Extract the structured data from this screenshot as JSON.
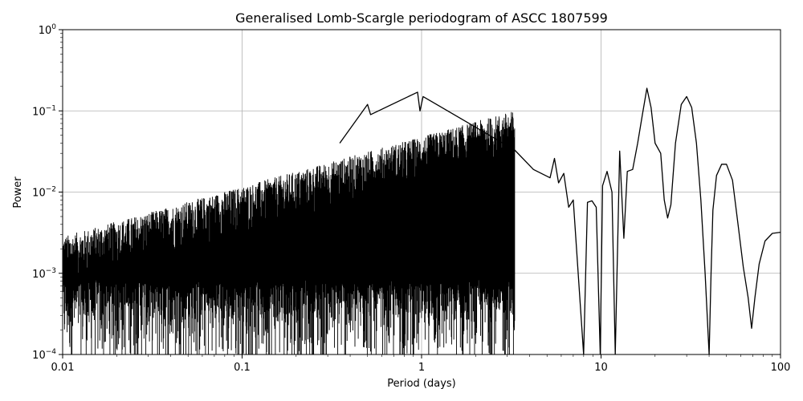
{
  "chart_data": {
    "type": "line",
    "title": "Generalised Lomb-Scargle periodogram of ASCC 1807599",
    "xlabel": "Period (days)",
    "ylabel": "Power",
    "xscale": "log",
    "yscale": "log",
    "xlim": [
      0.01,
      100
    ],
    "ylim": [
      0.0001,
      1
    ],
    "grid": true,
    "line_color": "#000000",
    "x_ticks": [
      {
        "value": 0.01,
        "label": "0.01"
      },
      {
        "value": 0.1,
        "label": "0.1"
      },
      {
        "value": 1,
        "label": "1"
      },
      {
        "value": 10,
        "label": "10"
      },
      {
        "value": 100,
        "label": "100"
      }
    ],
    "y_ticks": [
      {
        "value": 0.0001,
        "base": "10",
        "exp": "−4"
      },
      {
        "value": 0.001,
        "base": "10",
        "exp": "−3"
      },
      {
        "value": 0.01,
        "base": "10",
        "exp": "−2"
      },
      {
        "value": 0.1,
        "base": "10",
        "exp": "−1"
      },
      {
        "value": 1,
        "base": "10",
        "exp": "0"
      }
    ],
    "series": [
      {
        "x": [
          0.35,
          0.5,
          0.52,
          0.95,
          0.98,
          1.02,
          3.3,
          4.2,
          5.2,
          5.5,
          5.8,
          6.2,
          6.6,
          7.0,
          8.0,
          8.4,
          8.9,
          9.4,
          9.9,
          10.2,
          10.8,
          11.5,
          12.0,
          12.7,
          13.4,
          14.0,
          15.0,
          16.0,
          17.0,
          18.0,
          19.0,
          20.0,
          21.5,
          22.5,
          23.5,
          24.5,
          26.0,
          28.0,
          30.0,
          32.0,
          34.0,
          36.0,
          38.0,
          40.0,
          41.0,
          42.0,
          44.0,
          47.0,
          50.0,
          54.0,
          58.0,
          62.0,
          66.0,
          69.0,
          72.0,
          76.0,
          82.0,
          90.0,
          100.0
        ],
        "y": [
          0.04,
          0.12,
          0.09,
          0.17,
          0.1,
          0.15,
          0.033,
          0.019,
          0.015,
          0.026,
          0.013,
          0.017,
          0.0065,
          0.008,
          0.0001,
          0.0075,
          0.0078,
          0.0065,
          0.0001,
          0.012,
          0.018,
          0.01,
          0.0001,
          0.032,
          0.0027,
          0.018,
          0.019,
          0.04,
          0.09,
          0.19,
          0.11,
          0.04,
          0.03,
          0.008,
          0.0048,
          0.007,
          0.04,
          0.12,
          0.15,
          0.11,
          0.04,
          0.008,
          0.001,
          0.0001,
          0.001,
          0.006,
          0.016,
          0.022,
          0.022,
          0.014,
          0.004,
          0.0012,
          0.0005,
          0.00021,
          0.0005,
          0.0013,
          0.0025,
          0.0031,
          0.0032
        ]
      }
    ]
  }
}
